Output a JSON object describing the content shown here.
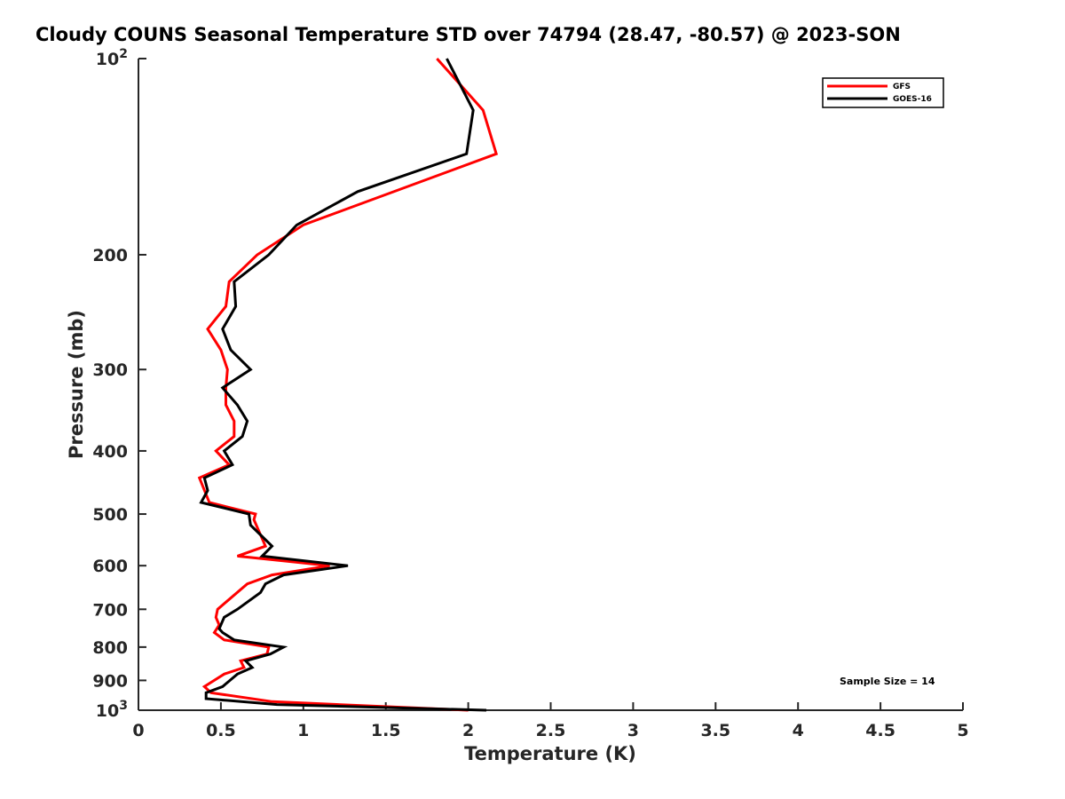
{
  "chart_data": {
    "type": "line",
    "title": "Cloudy COUNS Seasonal Temperature STD over 74794 (28.47, -80.57) @ 2023-SON",
    "xlabel": "Temperature (K)",
    "ylabel": "Pressure (mb)",
    "xlim": [
      0,
      5
    ],
    "ylim": [
      100,
      1000
    ],
    "yscale": "log",
    "y_reversed": true,
    "grid": false,
    "legend_position": "top-right",
    "xticks": [
      "0",
      "0.5",
      "1",
      "1.5",
      "2",
      "2.5",
      "3",
      "3.5",
      "4",
      "4.5",
      "5"
    ],
    "xtick_values": [
      0,
      0.5,
      1,
      1.5,
      2,
      2.5,
      3,
      3.5,
      4,
      4.5,
      5
    ],
    "yticks": [
      {
        "value": 100,
        "base": "10",
        "exp": "2"
      },
      {
        "value": 200,
        "label": "200"
      },
      {
        "value": 300,
        "label": "300"
      },
      {
        "value": 400,
        "label": "400"
      },
      {
        "value": 500,
        "label": "500"
      },
      {
        "value": 600,
        "label": "600"
      },
      {
        "value": 700,
        "label": "700"
      },
      {
        "value": 800,
        "label": "800"
      },
      {
        "value": 900,
        "label": "900"
      },
      {
        "value": 1000,
        "base": "10",
        "exp": "3"
      }
    ],
    "annotation": "Sample Size = 14",
    "series": [
      {
        "name": "GFS",
        "color": "#ff0000",
        "pressure": [
          100,
          120,
          140,
          180,
          200,
          220,
          240,
          260,
          280,
          300,
          320,
          340,
          360,
          380,
          400,
          420,
          440,
          480,
          500,
          510,
          560,
          580,
          600,
          620,
          640,
          700,
          720,
          740,
          760,
          780,
          800,
          820,
          840,
          860,
          880,
          920,
          940,
          970,
          1000
        ],
        "values": [
          1.81,
          2.09,
          2.17,
          1.0,
          0.72,
          0.55,
          0.53,
          0.42,
          0.5,
          0.54,
          0.53,
          0.53,
          0.58,
          0.58,
          0.47,
          0.55,
          0.37,
          0.43,
          0.71,
          0.7,
          0.77,
          0.6,
          1.16,
          0.81,
          0.66,
          0.48,
          0.47,
          0.49,
          0.46,
          0.52,
          0.79,
          0.78,
          0.62,
          0.64,
          0.52,
          0.4,
          0.44,
          0.81,
          2.0
        ]
      },
      {
        "name": "GOES-16",
        "color": "#000000",
        "pressure": [
          100,
          120,
          140,
          160,
          180,
          200,
          220,
          240,
          260,
          280,
          300,
          320,
          340,
          360,
          380,
          400,
          420,
          440,
          460,
          480,
          500,
          520,
          560,
          580,
          600,
          620,
          640,
          660,
          700,
          720,
          750,
          760,
          780,
          800,
          820,
          840,
          860,
          880,
          920,
          940,
          960,
          980,
          1000
        ],
        "values": [
          1.87,
          2.03,
          1.99,
          1.33,
          0.96,
          0.79,
          0.58,
          0.59,
          0.51,
          0.56,
          0.68,
          0.51,
          0.6,
          0.66,
          0.63,
          0.52,
          0.57,
          0.4,
          0.42,
          0.38,
          0.67,
          0.68,
          0.81,
          0.75,
          1.27,
          0.88,
          0.77,
          0.74,
          0.6,
          0.52,
          0.49,
          0.51,
          0.58,
          0.88,
          0.8,
          0.65,
          0.69,
          0.6,
          0.51,
          0.41,
          0.41,
          0.84,
          2.11
        ]
      }
    ]
  }
}
